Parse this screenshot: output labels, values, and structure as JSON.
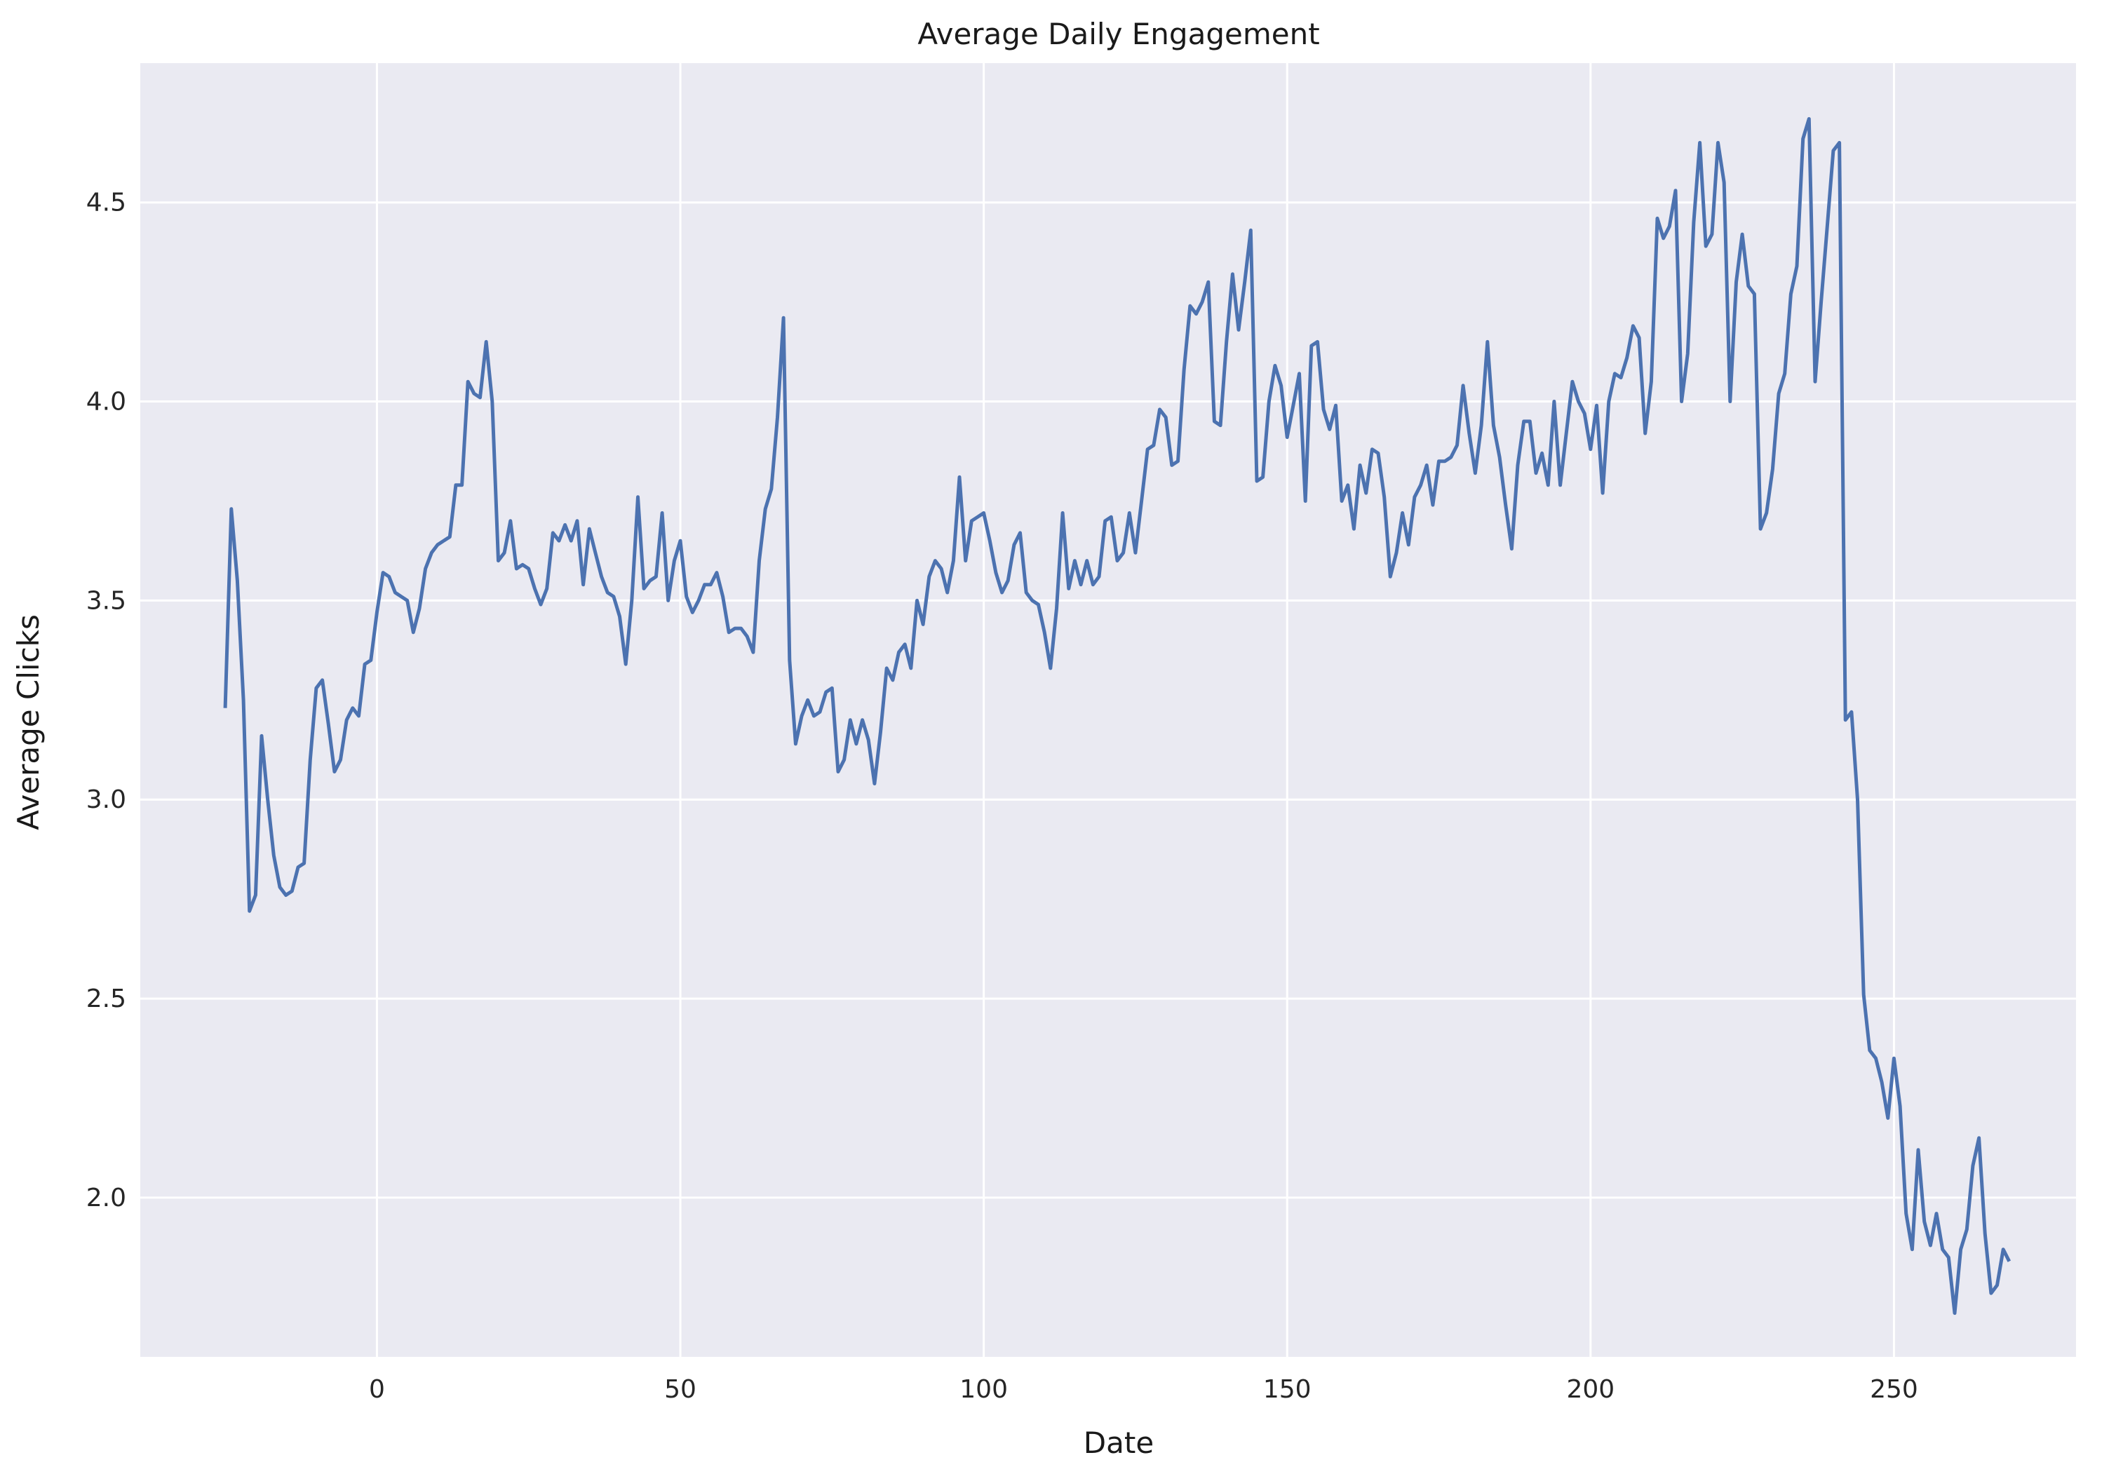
{
  "chart_data": {
    "type": "line",
    "title": "Average Daily Engagement",
    "xlabel": "Date",
    "ylabel": "Average Clicks",
    "xlim": [
      -39,
      280
    ],
    "ylim": [
      1.6,
      4.85
    ],
    "x_ticks": [
      0,
      50,
      100,
      150,
      200,
      250
    ],
    "y_ticks": [
      2.0,
      2.5,
      3.0,
      3.5,
      4.0,
      4.5
    ],
    "x_tick_labels": [
      "0",
      "50",
      "100",
      "150",
      "200",
      "250"
    ],
    "y_tick_labels": [
      "2.0",
      "2.5",
      "3.0",
      "3.5",
      "4.0",
      "4.5"
    ],
    "grid": true,
    "legend": "none",
    "colors": {
      "line": "#4c72b0",
      "plot_bg": "#eaeaf2",
      "grid": "#ffffff",
      "figure_bg": "#ffffff"
    },
    "series": [
      {
        "x_start": -25,
        "x_step": 1,
        "values": [
          3.23,
          3.73,
          3.55,
          3.25,
          2.72,
          2.76,
          3.16,
          3.0,
          2.86,
          2.78,
          2.76,
          2.77,
          2.83,
          2.84,
          3.1,
          3.28,
          3.3,
          3.19,
          3.07,
          3.1,
          3.2,
          3.23,
          3.21,
          3.34,
          3.35,
          3.47,
          3.57,
          3.56,
          3.52,
          3.51,
          3.5,
          3.42,
          3.48,
          3.58,
          3.62,
          3.64,
          3.65,
          3.66,
          3.79,
          3.79,
          4.05,
          4.02,
          4.01,
          4.15,
          4.0,
          3.6,
          3.62,
          3.7,
          3.58,
          3.59,
          3.58,
          3.53,
          3.49,
          3.53,
          3.67,
          3.65,
          3.69,
          3.65,
          3.7,
          3.54,
          3.68,
          3.62,
          3.56,
          3.52,
          3.51,
          3.46,
          3.34,
          3.5,
          3.76,
          3.53,
          3.55,
          3.56,
          3.72,
          3.5,
          3.6,
          3.65,
          3.51,
          3.47,
          3.5,
          3.54,
          3.54,
          3.57,
          3.51,
          3.42,
          3.43,
          3.43,
          3.41,
          3.37,
          3.6,
          3.73,
          3.78,
          3.96,
          4.21,
          3.35,
          3.14,
          3.21,
          3.25,
          3.21,
          3.22,
          3.27,
          3.28,
          3.07,
          3.1,
          3.2,
          3.14,
          3.2,
          3.15,
          3.04,
          3.17,
          3.33,
          3.3,
          3.37,
          3.39,
          3.33,
          3.5,
          3.44,
          3.56,
          3.6,
          3.58,
          3.52,
          3.6,
          3.81,
          3.6,
          3.7,
          3.71,
          3.72,
          3.65,
          3.57,
          3.52,
          3.55,
          3.64,
          3.67,
          3.52,
          3.5,
          3.49,
          3.42,
          3.33,
          3.48,
          3.72,
          3.53,
          3.6,
          3.54,
          3.6,
          3.54,
          3.56,
          3.7,
          3.71,
          3.6,
          3.62,
          3.72,
          3.62,
          3.75,
          3.88,
          3.89,
          3.98,
          3.96,
          3.84,
          3.85,
          4.08,
          4.24,
          4.22,
          4.25,
          4.3,
          3.95,
          3.94,
          4.15,
          4.32,
          4.18,
          4.3,
          4.43,
          3.8,
          3.81,
          4.0,
          4.09,
          4.04,
          3.91,
          3.99,
          4.07,
          3.75,
          4.14,
          4.15,
          3.98,
          3.93,
          3.99,
          3.75,
          3.79,
          3.68,
          3.84,
          3.77,
          3.88,
          3.87,
          3.76,
          3.56,
          3.62,
          3.72,
          3.64,
          3.76,
          3.79,
          3.84,
          3.74,
          3.85,
          3.85,
          3.86,
          3.89,
          4.04,
          3.92,
          3.82,
          3.94,
          4.15,
          3.94,
          3.86,
          3.74,
          3.63,
          3.84,
          3.95,
          3.95,
          3.82,
          3.87,
          3.79,
          4.0,
          3.79,
          3.92,
          4.05,
          4.0,
          3.97,
          3.88,
          3.99,
          3.77,
          4.0,
          4.07,
          4.06,
          4.11,
          4.19,
          4.16,
          3.92,
          4.05,
          4.46,
          4.41,
          4.44,
          4.53,
          4.0,
          4.12,
          4.45,
          4.65,
          4.39,
          4.42,
          4.65,
          4.55,
          4.0,
          4.3,
          4.42,
          4.29,
          4.27,
          3.68,
          3.72,
          3.83,
          4.02,
          4.07,
          4.27,
          4.34,
          4.66,
          4.71,
          4.05,
          4.25,
          4.44,
          4.63,
          4.65,
          3.2,
          3.22,
          3.0,
          2.51,
          2.37,
          2.35,
          2.29,
          2.2,
          2.35,
          2.23,
          1.96,
          1.87,
          2.12,
          1.94,
          1.88,
          1.96,
          1.87,
          1.85,
          1.71,
          1.87,
          1.92,
          2.08,
          2.15,
          1.91,
          1.76,
          1.78,
          1.87,
          1.84
        ]
      }
    ]
  }
}
